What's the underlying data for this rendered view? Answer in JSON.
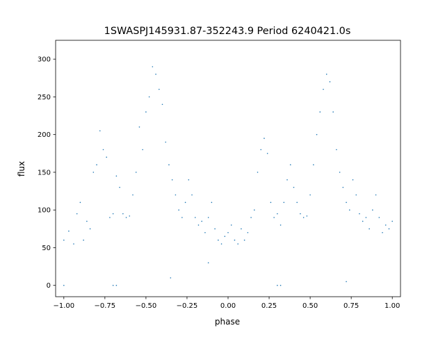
{
  "chart_data": {
    "type": "scatter",
    "title": "1SWASPJ145931.87-352243.9 Period 6240421.0s",
    "xlabel": "phase",
    "ylabel": "flux",
    "xlim": [
      -1.05,
      1.05
    ],
    "ylim": [
      -15,
      325
    ],
    "xticks": [
      -1.0,
      -0.75,
      -0.5,
      -0.25,
      0.0,
      0.25,
      0.5,
      0.75,
      1.0
    ],
    "xtick_labels": [
      "−1.00",
      "−0.75",
      "−0.50",
      "−0.25",
      "0.00",
      "0.25",
      "0.50",
      "0.75",
      "1.00"
    ],
    "yticks": [
      0,
      50,
      100,
      150,
      200,
      250,
      300
    ],
    "ytick_labels": [
      "0",
      "50",
      "100",
      "150",
      "200",
      "250",
      "300"
    ],
    "grid": false,
    "marker_color": "#1f77b4",
    "series": [
      {
        "name": "",
        "x": [
          -1.0,
          -0.97,
          -0.94,
          -0.92,
          -0.9,
          -0.88,
          -0.86,
          -0.84,
          -0.82,
          -0.8,
          -0.78,
          -0.76,
          -0.74,
          -0.72,
          -0.7,
          -0.68,
          -0.66,
          -0.64,
          -0.62,
          -0.6,
          -0.58,
          -0.56,
          -0.54,
          -0.52,
          -0.5,
          -0.48,
          -0.46,
          -0.44,
          -0.42,
          -0.4,
          -0.38,
          -0.36,
          -0.34,
          -0.32,
          -0.3,
          -0.28,
          -0.26,
          -0.24,
          -0.22,
          -0.2,
          -0.18,
          -0.16,
          -0.14,
          -0.12,
          -0.1,
          -0.08,
          -0.06,
          -0.04,
          -0.02,
          0.0,
          0.02,
          0.04,
          0.06,
          0.08,
          0.1,
          0.12,
          0.14,
          0.16,
          0.18,
          0.2,
          0.22,
          0.24,
          0.26,
          0.28,
          0.3,
          0.32,
          0.34,
          0.36,
          0.38,
          0.4,
          0.42,
          0.44,
          0.46,
          0.48,
          0.5,
          0.52,
          0.54,
          0.56,
          0.58,
          0.6,
          0.62,
          0.64,
          0.66,
          0.68,
          0.7,
          0.72,
          0.74,
          0.76,
          0.78,
          0.8,
          0.82,
          0.84,
          0.86,
          0.88,
          0.9,
          0.92,
          0.94,
          0.96,
          0.98,
          1.0
        ],
        "y": [
          60,
          72,
          55,
          95,
          110,
          60,
          85,
          75,
          150,
          160,
          205,
          180,
          170,
          90,
          95,
          145,
          130,
          95,
          90,
          92,
          120,
          150,
          210,
          180,
          230,
          250,
          290,
          280,
          260,
          240,
          190,
          160,
          140,
          120,
          100,
          90,
          110,
          140,
          120,
          90,
          80,
          85,
          70,
          90,
          110,
          75,
          60,
          55,
          65,
          70,
          80,
          60,
          55,
          75,
          60,
          70,
          90,
          100,
          150,
          180,
          195,
          175,
          110,
          90,
          95,
          80,
          110,
          140,
          160,
          130,
          110,
          95,
          90,
          92,
          120,
          160,
          200,
          230,
          260,
          280,
          270,
          230,
          180,
          150,
          130,
          110,
          100,
          140,
          120,
          95,
          85,
          90,
          75,
          100,
          120,
          90,
          70,
          80,
          75,
          85
        ]
      }
    ],
    "outliers": {
      "x": [
        -1.0,
        -0.7,
        -0.68,
        0.3,
        0.32,
        -0.12,
        0.72,
        -0.35
      ],
      "y": [
        0,
        0,
        0,
        0,
        0,
        30,
        5,
        10
      ]
    }
  }
}
